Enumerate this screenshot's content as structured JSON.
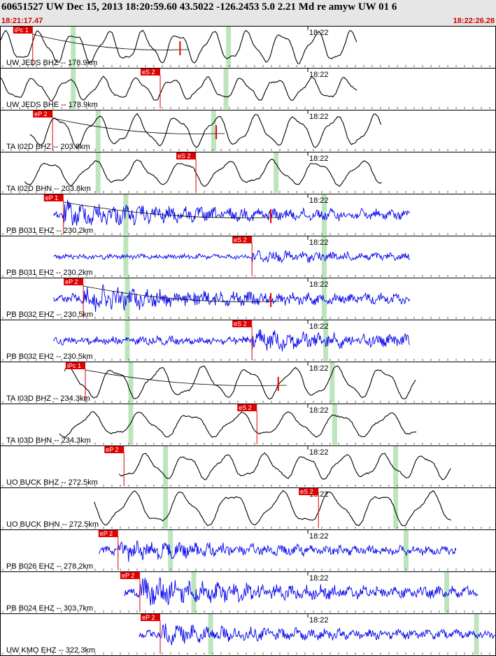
{
  "header": {
    "event_line": "60651527 UW Dec 15, 2013 18:20:59.60    43.5022 -126.2453  5.0 2.21 Md re amyw UW 01    6",
    "start_time": "18:21:17.47",
    "end_time": "18:22:26.28"
  },
  "time_tick_label": "18:22",
  "colors": {
    "panel_border": "#000000",
    "trace_velocity": "#000000",
    "trace_strain": "#0000ee",
    "pick": "#e00000",
    "marker": "#bde5bd",
    "header_bg": "#e6e6e6"
  },
  "panels": [
    {
      "label": "UW JEDS BHZ -- 178.9km",
      "pick_label": "iPc 1",
      "trace_color": "#000000",
      "waveform": "lp",
      "trace_start": 0.0,
      "trace_end": 0.72,
      "pick_at": 0.066,
      "markers": [
        0.147,
        0.46
      ],
      "coda_mark": 0.363,
      "amp": 0.7,
      "period": 0.07
    },
    {
      "label": "UW JEDS BHE -- 178.9km",
      "pick_label": "eS 2",
      "trace_color": "#000000",
      "waveform": "lp",
      "trace_start": 0.0,
      "trace_end": 0.72,
      "pick_at": 0.323,
      "markers": [
        0.147,
        0.455
      ],
      "coda_mark": null,
      "amp": 0.5,
      "period": 0.07
    },
    {
      "label": "TA I02D BHZ -- 203.8km",
      "pick_label": "eP 2",
      "trace_color": "#000000",
      "waveform": "lp",
      "trace_start": 0.06,
      "trace_end": 0.77,
      "pick_at": 0.106,
      "markers": [
        0.197,
        0.43
      ],
      "coda_mark": 0.436,
      "amp": 0.7,
      "period": 0.08
    },
    {
      "label": "TA I02D BHN -- 203.8km",
      "pick_label": "eS 2",
      "trace_color": "#000000",
      "waveform": "lp",
      "trace_start": 0.05,
      "trace_end": 0.77,
      "pick_at": 0.395,
      "markers": [
        0.197,
        0.556
      ],
      "coda_mark": null,
      "amp": 0.55,
      "period": 0.09
    },
    {
      "label": "PB B031 EHZ -- 230.2km",
      "pick_label": "eP 1",
      "trace_color": "#0000ee",
      "waveform": "hf",
      "trace_start": 0.108,
      "trace_end": 0.826,
      "pick_at": 0.128,
      "markers": [
        0.253,
        0.653
      ],
      "coda_mark": 0.546,
      "amp": 0.35,
      "period": 0.01
    },
    {
      "label": "PB B031 EH2 -- 230.2km",
      "pick_label": "eS 2",
      "trace_color": "#0000ee",
      "waveform": "hf",
      "trace_start": 0.108,
      "trace_end": 0.826,
      "pick_at": 0.508,
      "markers": [
        0.253,
        0.653
      ],
      "coda_mark": null,
      "amp": 0.18,
      "period": 0.01
    },
    {
      "label": "PB B032 EHZ -- 230.5km",
      "pick_label": "eP 2",
      "trace_color": "#0000ee",
      "waveform": "hf",
      "trace_start": 0.108,
      "trace_end": 0.826,
      "pick_at": 0.168,
      "markers": [
        0.256,
        0.653
      ],
      "coda_mark": 0.546,
      "amp": 0.35,
      "period": 0.01
    },
    {
      "label": "PB B032 EH2 -- 230.5km",
      "pick_label": "eS 2",
      "trace_color": "#0000ee",
      "waveform": "hf",
      "trace_start": 0.108,
      "trace_end": 0.826,
      "pick_at": 0.508,
      "markers": [
        0.256,
        0.656
      ],
      "coda_mark": null,
      "amp": 0.3,
      "period": 0.01
    },
    {
      "label": "TA I03D BHZ -- 234.3km",
      "pick_label": "iPc 1",
      "trace_color": "#000000",
      "waveform": "lp",
      "trace_start": 0.13,
      "trace_end": 0.84,
      "pick_at": 0.172,
      "markers": [
        0.263,
        0.669
      ],
      "coda_mark": 0.561,
      "amp": 0.7,
      "period": 0.09
    },
    {
      "label": "TA I03D BHN -- 234.3km",
      "pick_label": "eS 2",
      "trace_color": "#000000",
      "waveform": "lp",
      "trace_start": 0.12,
      "trace_end": 0.84,
      "pick_at": 0.518,
      "markers": [
        0.263,
        0.674
      ],
      "coda_mark": null,
      "amp": 0.55,
      "period": 0.1
    },
    {
      "label": "UO BUCK BHZ -- 272.5km",
      "pick_label": "eP 2",
      "trace_color": "#000000",
      "waveform": "lp",
      "trace_start": 0.24,
      "trace_end": 0.91,
      "pick_at": 0.25,
      "markers": [
        0.333,
        0.797
      ],
      "coda_mark": null,
      "amp": 0.55,
      "period": 0.08
    },
    {
      "label": "UO BUCK BHN -- 272.5km",
      "pick_label": "eS 2",
      "trace_color": "#000000",
      "waveform": "lp",
      "trace_start": 0.19,
      "trace_end": 0.91,
      "pick_at": 0.642,
      "markers": [
        0.333,
        0.797
      ],
      "coda_mark": null,
      "amp": 0.75,
      "period": 0.1
    },
    {
      "label": "PB B026 EHZ -- 278.2km",
      "pick_label": "eP 2",
      "trace_color": "#0000ee",
      "waveform": "hf",
      "trace_start": 0.2,
      "trace_end": 0.92,
      "pick_at": 0.238,
      "markers": [
        0.343,
        0.818
      ],
      "coda_mark": null,
      "amp": 0.3,
      "period": 0.025
    },
    {
      "label": "PB B024 EHZ -- 303.7km",
      "pick_label": "eP 2",
      "trace_color": "#0000ee",
      "waveform": "hf",
      "trace_start": 0.25,
      "trace_end": 0.965,
      "pick_at": 0.282,
      "markers": [
        0.39,
        0.9
      ],
      "coda_mark": null,
      "amp": 0.38,
      "period": 0.03
    },
    {
      "label": "UW KMO EHZ -- 322.3km",
      "pick_label": "eP 2",
      "trace_color": "#0000ee",
      "waveform": "hf",
      "trace_start": 0.28,
      "trace_end": 1.0,
      "pick_at": 0.323,
      "markers": [
        0.424,
        0.96
      ],
      "coda_mark": null,
      "amp": 0.28,
      "period": 0.03
    }
  ]
}
